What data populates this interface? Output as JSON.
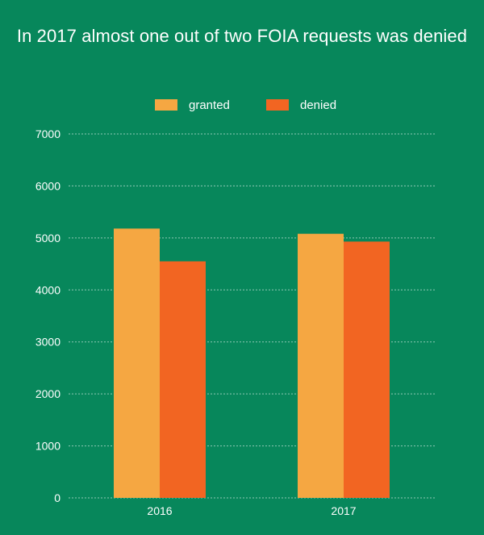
{
  "chart_data": {
    "type": "bar",
    "title": "In 2017 almost one out of two FOIA requests was denied",
    "categories": [
      "2016",
      "2017"
    ],
    "series": [
      {
        "name": "granted",
        "color": "#F5A742",
        "values": [
          5180,
          5080
        ]
      },
      {
        "name": "denied",
        "color": "#F26522",
        "values": [
          4550,
          4930
        ]
      }
    ],
    "xlabel": "",
    "ylabel": "",
    "ylim": [
      0,
      7000
    ],
    "yticks": [
      0,
      1000,
      2000,
      3000,
      4000,
      5000,
      6000,
      7000
    ],
    "grid": true,
    "legend_position": "top-center",
    "background": "#07875B"
  }
}
